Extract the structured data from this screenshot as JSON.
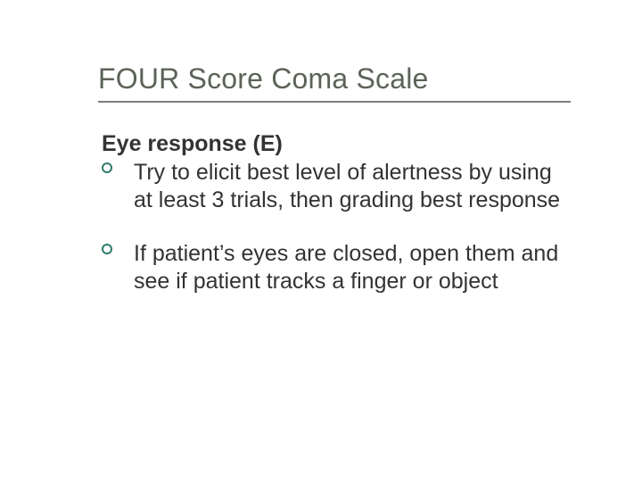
{
  "slide": {
    "title": "FOUR Score Coma Scale",
    "subhead": "Eye response (E)",
    "bullets": [
      "Try to elicit best level of alertness by using at least 3 trials, then grading best response",
      "If patient’s eyes are closed, open them and see if patient tracks a finger or object"
    ]
  },
  "style": {
    "title_color": "#5c6358",
    "title_fontsize_pt": 24,
    "rule_color": "#7a7f77",
    "body_color": "#333333",
    "body_fontsize_pt": 19,
    "bullet_ring_color": "#2e7b6d",
    "background_color": "#ffffff",
    "font_family": "Verdana"
  }
}
